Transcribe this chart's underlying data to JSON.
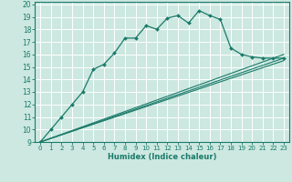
{
  "xlabel": "Humidex (Indice chaleur)",
  "bg_color": "#cce8e0",
  "grid_color": "#b0d8ce",
  "line_color": "#1a7a6a",
  "xlim": [
    -0.5,
    23.5
  ],
  "ylim": [
    9,
    20.2
  ],
  "xticks": [
    0,
    1,
    2,
    3,
    4,
    5,
    6,
    7,
    8,
    9,
    10,
    11,
    12,
    13,
    14,
    15,
    16,
    17,
    18,
    19,
    20,
    21,
    22,
    23
  ],
  "yticks": [
    9,
    10,
    11,
    12,
    13,
    14,
    15,
    16,
    17,
    18,
    19,
    20
  ],
  "main_x": [
    0,
    1,
    2,
    3,
    4,
    5,
    6,
    7,
    8,
    9,
    10,
    11,
    12,
    13,
    14,
    15,
    16,
    17,
    18,
    19,
    20,
    21,
    22,
    23
  ],
  "main_y": [
    9,
    10,
    11,
    12,
    13,
    14.8,
    15.2,
    16.1,
    17.3,
    17.3,
    18.3,
    18.0,
    18.9,
    19.1,
    18.5,
    19.5,
    19.1,
    18.8,
    16.5,
    16.0,
    15.8,
    15.7,
    15.7,
    15.7
  ],
  "line2_x": [
    0,
    23
  ],
  "line2_y": [
    9,
    16.0
  ],
  "line3_x": [
    0,
    23
  ],
  "line3_y": [
    9,
    15.7
  ],
  "line4_x": [
    0,
    23
  ],
  "line4_y": [
    9,
    15.5
  ]
}
